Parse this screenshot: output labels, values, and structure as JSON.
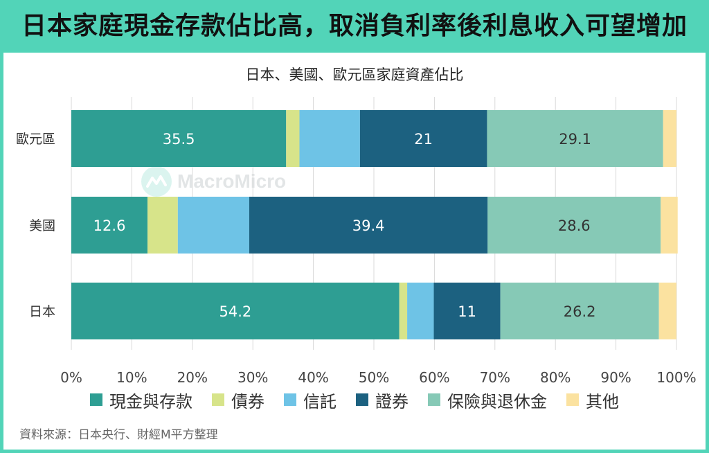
{
  "headline": "日本家庭現金存款佔比高，取消負利率後利息收入可望增加",
  "source": "資料來源：日本央行、財經M平方整理",
  "watermark": {
    "text": "MacroMicro",
    "icon": "macromicro-logo-icon"
  },
  "chart_data": {
    "type": "bar",
    "orientation": "horizontal",
    "stacked": true,
    "title": "日本、美國、歐元區家庭資產佔比",
    "categories": [
      "歐元區",
      "美國",
      "日本"
    ],
    "series": [
      {
        "name": "現金與存款",
        "color": "#2e9e93",
        "values": [
          35.5,
          12.6,
          54.2
        ],
        "labels": [
          "35.5",
          "12.6",
          "54.2"
        ]
      },
      {
        "name": "債券",
        "color": "#d7e48a",
        "values": [
          2.2,
          5.0,
          1.3
        ],
        "labels": [
          "",
          "",
          ""
        ]
      },
      {
        "name": "信託",
        "color": "#6ec3e6",
        "values": [
          10.0,
          11.8,
          4.4
        ],
        "labels": [
          "",
          "",
          ""
        ]
      },
      {
        "name": "證券",
        "color": "#1c6180",
        "values": [
          21.0,
          39.4,
          11.0
        ],
        "labels": [
          "21",
          "39.4",
          "11"
        ]
      },
      {
        "name": "保險與退休金",
        "color": "#86c9b6",
        "values": [
          29.1,
          28.6,
          26.2
        ],
        "labels": [
          "29.1",
          "28.6",
          "26.2"
        ]
      },
      {
        "name": "其他",
        "color": "#fbe2a0",
        "values": [
          2.2,
          2.8,
          2.9
        ],
        "labels": [
          "",
          "",
          ""
        ]
      }
    ],
    "xlim": [
      0,
      100
    ],
    "xticks": [
      "0%",
      "10%",
      "20%",
      "30%",
      "40%",
      "50%",
      "60%",
      "70%",
      "80%",
      "90%",
      "100%"
    ],
    "grid": "vertical",
    "legend": "bottom"
  }
}
